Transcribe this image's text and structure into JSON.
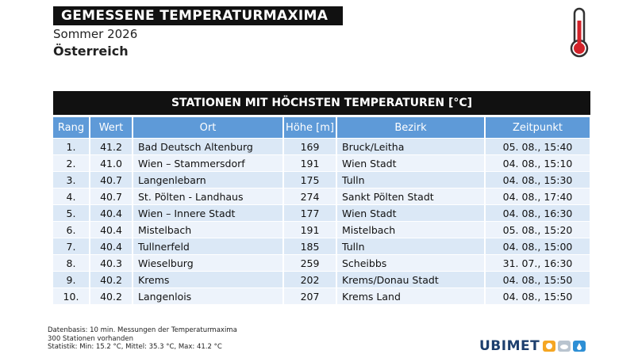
{
  "header": {
    "title": "GEMESSENE TEMPERATURMAXIMA",
    "subtitle": "Sommer 2026",
    "region": "Österreich"
  },
  "table": {
    "title": "STATIONEN MIT HÖCHSTEN TEMPERATUREN [°C]",
    "columns": [
      "Rang",
      "Wert",
      "Ort",
      "Höhe [m]",
      "Bezirk",
      "Zeitpunkt"
    ],
    "rows": [
      [
        "1.",
        "41.2",
        "Bad Deutsch Altenburg",
        "169",
        "Bruck/Leitha",
        "05. 08., 15:40"
      ],
      [
        "2.",
        "41.0",
        "Wien – Stammersdorf",
        "191",
        "Wien Stadt",
        "04. 08., 15:10"
      ],
      [
        "3.",
        "40.7",
        "Langenlebarn",
        "175",
        "Tulln",
        "04. 08., 15:30"
      ],
      [
        "4.",
        "40.7",
        "St. Pölten - Landhaus",
        "274",
        "Sankt Pölten Stadt",
        "04. 08., 17:40"
      ],
      [
        "5.",
        "40.4",
        "Wien – Innere Stadt",
        "177",
        "Wien Stadt",
        "04. 08., 16:30"
      ],
      [
        "6.",
        "40.4",
        "Mistelbach",
        "191",
        "Mistelbach",
        "05. 08., 15:20"
      ],
      [
        "7.",
        "40.4",
        "Tullnerfeld",
        "185",
        "Tulln",
        "04. 08., 15:00"
      ],
      [
        "8.",
        "40.3",
        "Wieselburg",
        "259",
        "Scheibbs",
        "31. 07., 16:30"
      ],
      [
        "9.",
        "40.2",
        "Krems",
        "202",
        "Krems/Donau Stadt",
        "04. 08., 15:50"
      ],
      [
        "10.",
        "40.2",
        "Langenlois",
        "207",
        "Krems Land",
        "04. 08., 15:50"
      ]
    ]
  },
  "footer": {
    "lines": [
      "Datenbasis: 10 min. Messungen der Temperaturmaxima",
      "300 Stationen vorhanden",
      "Statistik: Min: 15.2 °C, Mittel: 35.3 °C, Max: 41.2 °C"
    ]
  },
  "logo": "UBIMET"
}
